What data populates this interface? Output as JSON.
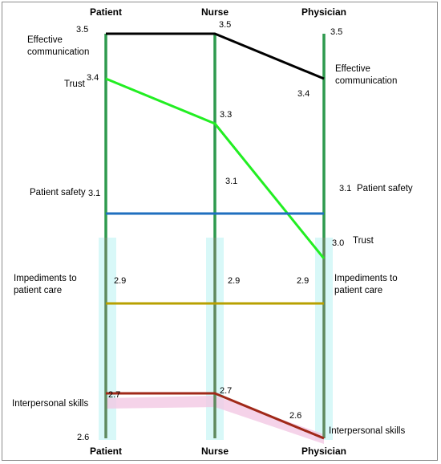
{
  "chart_data": {
    "type": "slope",
    "axes": [
      "Patient",
      "Nurse",
      "Physician"
    ],
    "ylim": [
      2.6,
      3.5
    ],
    "axis_bottom_value": "2.6",
    "series": [
      {
        "name": "Effective communication",
        "values": [
          3.5,
          3.5,
          3.4
        ],
        "value_labels": [
          "3.5",
          "3.5",
          "3.4"
        ],
        "right_value_label": "3.5",
        "color": "#000000"
      },
      {
        "name": "Trust",
        "values": [
          3.4,
          3.3,
          3.0
        ],
        "value_labels": [
          "3.4",
          "3.3",
          "3.0"
        ],
        "color": "#22ee22"
      },
      {
        "name": "Patient safety",
        "values": [
          3.1,
          3.1,
          3.1
        ],
        "value_labels": [
          "3.1",
          "3.1",
          "3.1"
        ],
        "color": "#1f6fbf"
      },
      {
        "name": "Impediments to patient care",
        "values": [
          2.9,
          2.9,
          2.9
        ],
        "value_labels": [
          "2.9",
          "2.9",
          "2.9"
        ],
        "color": "#b8a000"
      },
      {
        "name": "Interpersonal skills",
        "values": [
          2.7,
          2.7,
          2.6
        ],
        "value_labels": [
          "2.7",
          "2.7",
          "2.6"
        ],
        "color": "#a02818"
      }
    ],
    "labels": {
      "left_effective": [
        "Effective",
        "communication"
      ],
      "left_trust": "Trust",
      "left_safety": "Patient safety",
      "left_impediments": [
        "Impediments to",
        "patient care"
      ],
      "left_interpersonal": "Interpersonal skills",
      "right_effective": [
        "Effective",
        "communication"
      ],
      "right_safety": "Patient safety",
      "right_trust": "Trust",
      "right_impediments": [
        "Impediments to",
        "patient care"
      ],
      "right_interpersonal": "Interpersonal skills"
    },
    "colors": {
      "axis": "#2f9a4e",
      "axis_lower": "#5f8a5f",
      "band": "#d8f8f8",
      "pink_band": "#f3c8e3"
    }
  }
}
